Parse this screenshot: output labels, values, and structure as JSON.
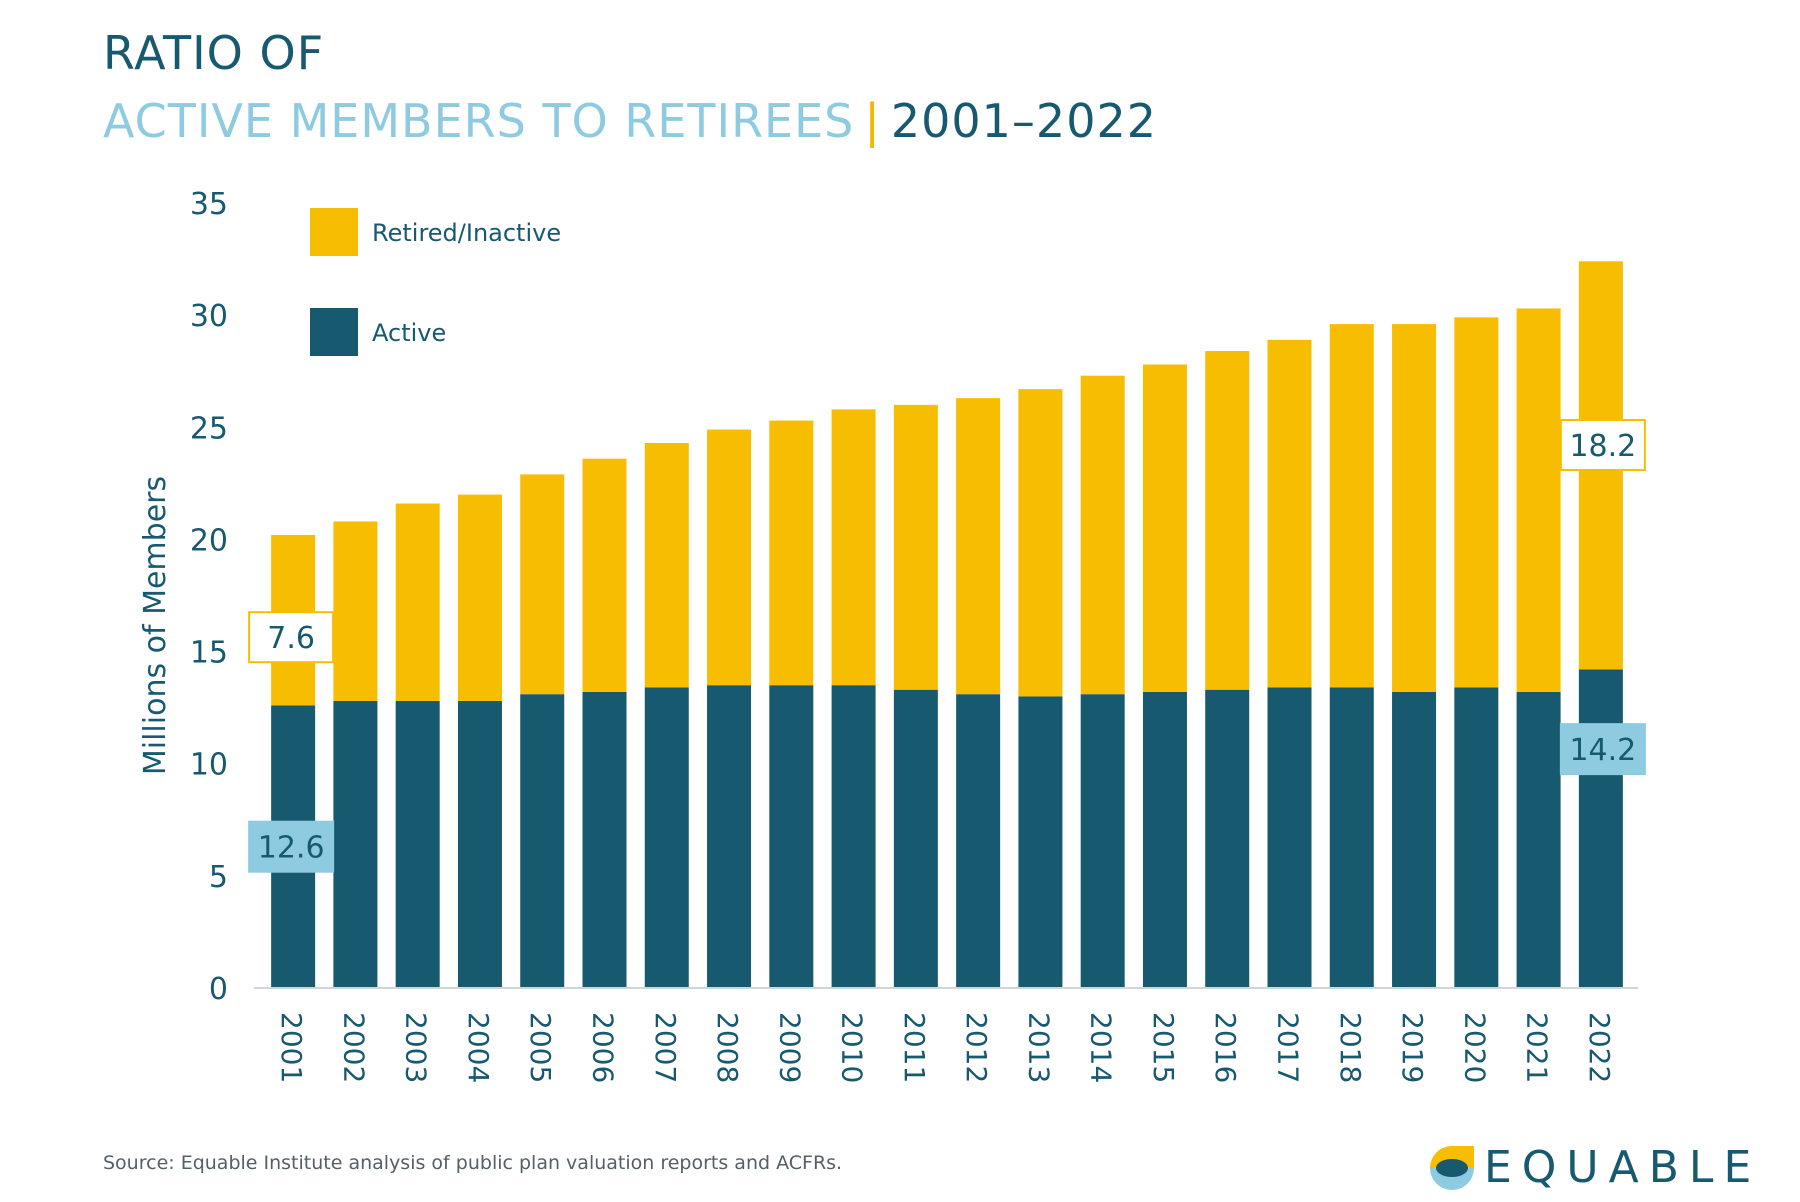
{
  "header": {
    "title_line1": "RATIO OF",
    "title_line2a": "ACTIVE MEMBERS TO RETIREES",
    "title_separator": "|",
    "title_line2b": "2001–2022"
  },
  "source": "Source: Equable Institute analysis of public plan valuation reports and ACFRs.",
  "logo": {
    "text": "EQUABLE",
    "icon": "equable-logo-icon"
  },
  "colors": {
    "active": "#17596f",
    "retired": "#f7bd00",
    "label_light": "#8ecae0",
    "text": "#17596f"
  },
  "chart_data": {
    "type": "bar",
    "stacked": true,
    "ylabel": "Millions of Members",
    "xlabel": "",
    "ylim": [
      0,
      35
    ],
    "yticks": [
      0,
      5,
      10,
      15,
      20,
      25,
      30,
      35
    ],
    "categories": [
      "2001",
      "2002",
      "2003",
      "2004",
      "2005",
      "2006",
      "2007",
      "2008",
      "2009",
      "2010",
      "2011",
      "2012",
      "2013",
      "2014",
      "2015",
      "2016",
      "2017",
      "2018",
      "2019",
      "2020",
      "2021",
      "2022"
    ],
    "series": [
      {
        "name": "Active",
        "values": [
          12.6,
          12.8,
          12.8,
          12.8,
          13.1,
          13.2,
          13.4,
          13.5,
          13.5,
          13.5,
          13.3,
          13.1,
          13.0,
          13.1,
          13.2,
          13.3,
          13.4,
          13.4,
          13.2,
          13.4,
          13.2,
          14.2
        ]
      },
      {
        "name": "Retired/Inactive",
        "values": [
          7.6,
          8.0,
          8.8,
          9.2,
          9.8,
          10.4,
          10.9,
          11.4,
          11.8,
          12.3,
          12.7,
          13.2,
          13.7,
          14.2,
          14.6,
          15.1,
          15.5,
          16.2,
          16.4,
          16.5,
          17.1,
          18.2
        ]
      }
    ],
    "legend": {
      "position": "top-left",
      "items": [
        "Retired/Inactive",
        "Active"
      ]
    },
    "annotations": [
      {
        "label": "7.6",
        "series": "Retired/Inactive",
        "category": "2001"
      },
      {
        "label": "12.6",
        "series": "Active",
        "category": "2001"
      },
      {
        "label": "18.2",
        "series": "Retired/Inactive",
        "category": "2022"
      },
      {
        "label": "14.2",
        "series": "Active",
        "category": "2022"
      }
    ],
    "grid": false
  }
}
